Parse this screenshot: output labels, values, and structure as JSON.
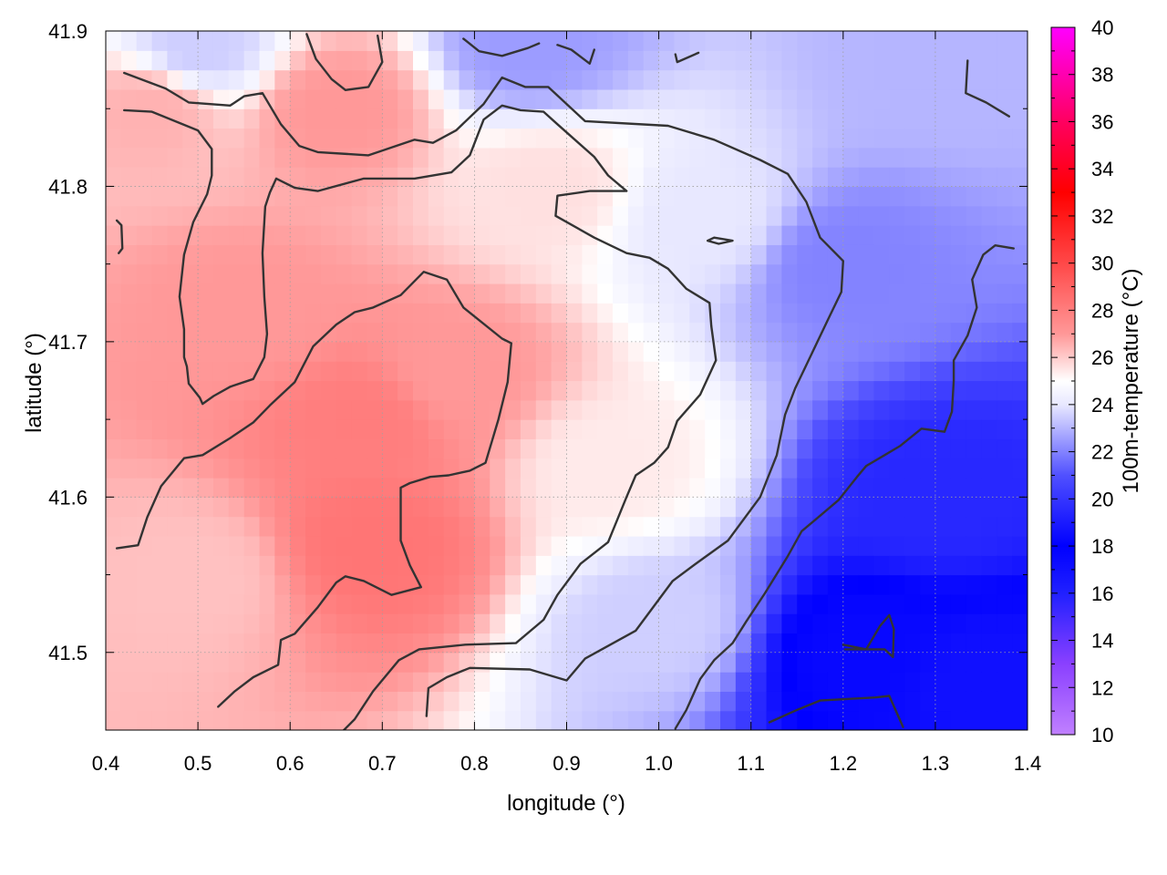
{
  "chart_data": {
    "type": "heatmap",
    "title": "",
    "xlabel": "longitude (°)",
    "ylabel": "latitude (°)",
    "colorbar_label": "100m-temperature (°C)",
    "xlim": [
      0.4,
      1.4
    ],
    "ylim": [
      41.45,
      41.9
    ],
    "x_ticks": [
      "0.4",
      "0.5",
      "0.6",
      "0.7",
      "0.8",
      "0.9",
      "1.0",
      "1.1",
      "1.2",
      "1.3",
      "1.4"
    ],
    "y_ticks": [
      "41.5",
      "41.6",
      "41.7",
      "41.8",
      "41.9"
    ],
    "colorbar_range": [
      10,
      40
    ],
    "colorbar_ticks": [
      "10",
      "12",
      "14",
      "16",
      "18",
      "20",
      "22",
      "24",
      "26",
      "28",
      "30",
      "32",
      "34",
      "36",
      "38",
      "40"
    ],
    "colormap": [
      {
        "value": 10,
        "color": "#c080ff"
      },
      {
        "value": 13,
        "color": "#8a40ff"
      },
      {
        "value": 16,
        "color": "#2020ff"
      },
      {
        "value": 18,
        "color": "#0000ff"
      },
      {
        "value": 21,
        "color": "#5050ff"
      },
      {
        "value": 24,
        "color": "#e8e8ff"
      },
      {
        "value": 25,
        "color": "#ffffff"
      },
      {
        "value": 27,
        "color": "#ff9898"
      },
      {
        "value": 30,
        "color": "#ff4848"
      },
      {
        "value": 33,
        "color": "#ff0000"
      },
      {
        "value": 36,
        "color": "#ff0060"
      },
      {
        "value": 40,
        "color": "#ff00ff"
      }
    ],
    "grid": true,
    "contour_color": "#333333",
    "temperature_field_samples": [
      {
        "lon": 0.45,
        "lat": 41.85,
        "temp": 26.5
      },
      {
        "lon": 0.55,
        "lat": 41.72,
        "temp": 27.0
      },
      {
        "lon": 0.68,
        "lat": 41.65,
        "temp": 28.0
      },
      {
        "lon": 0.69,
        "lat": 41.57,
        "temp": 28.3
      },
      {
        "lon": 0.78,
        "lat": 41.68,
        "temp": 27.0
      },
      {
        "lon": 0.65,
        "lat": 41.85,
        "temp": 27.0
      },
      {
        "lon": 0.5,
        "lat": 41.55,
        "temp": 26.2
      },
      {
        "lon": 0.88,
        "lat": 41.8,
        "temp": 25.6
      },
      {
        "lon": 0.95,
        "lat": 41.62,
        "temp": 25.4
      },
      {
        "lon": 1.05,
        "lat": 41.78,
        "temp": 24.0
      },
      {
        "lon": 1.0,
        "lat": 41.52,
        "temp": 23.5
      },
      {
        "lon": 1.2,
        "lat": 41.75,
        "temp": 22.0
      },
      {
        "lon": 1.3,
        "lat": 41.88,
        "temp": 23.0
      },
      {
        "lon": 1.3,
        "lat": 41.6,
        "temp": 19.5
      },
      {
        "lon": 1.22,
        "lat": 41.5,
        "temp": 17.5
      },
      {
        "lon": 1.35,
        "lat": 41.48,
        "temp": 17.0
      },
      {
        "lon": 0.5,
        "lat": 41.89,
        "temp": 23.5
      },
      {
        "lon": 0.86,
        "lat": 41.89,
        "temp": 22.5
      }
    ],
    "contour_lines": [
      [
        [
          0.42,
          41.873
        ],
        [
          0.465,
          41.863
        ],
        [
          0.49,
          41.854
        ],
        [
          0.535,
          41.852
        ],
        [
          0.55,
          41.858
        ],
        [
          0.57,
          41.86
        ],
        [
          0.59,
          41.84
        ],
        [
          0.61,
          41.826
        ],
        [
          0.63,
          41.822
        ],
        [
          0.685,
          41.82
        ],
        [
          0.735,
          41.83
        ],
        [
          0.755,
          41.828
        ],
        [
          0.78,
          41.836
        ],
        [
          0.81,
          41.853
        ],
        [
          0.83,
          41.87
        ],
        [
          0.855,
          41.864
        ],
        [
          0.88,
          41.864
        ],
        [
          0.92,
          41.842
        ],
        [
          1.01,
          41.839
        ],
        [
          1.06,
          41.83
        ],
        [
          1.11,
          41.817
        ],
        [
          1.14,
          41.808
        ],
        [
          1.16,
          41.79
        ],
        [
          1.175,
          41.767
        ],
        [
          1.2,
          41.752
        ],
        [
          1.198,
          41.732
        ],
        [
          1.185,
          41.716
        ],
        [
          1.16,
          41.685
        ],
        [
          1.148,
          41.67
        ],
        [
          1.137,
          41.653
        ],
        [
          1.128,
          41.627
        ],
        [
          1.11,
          41.6
        ],
        [
          1.075,
          41.572
        ],
        [
          1.04,
          41.557
        ],
        [
          1.015,
          41.546
        ],
        [
          0.975,
          41.514
        ],
        [
          0.92,
          41.496
        ],
        [
          0.9,
          41.482
        ],
        [
          0.86,
          41.489
        ],
        [
          0.795,
          41.49
        ],
        [
          0.77,
          41.484
        ],
        [
          0.75,
          41.477
        ],
        [
          0.748,
          41.459
        ]
      ],
      [
        [
          0.42,
          41.849
        ],
        [
          0.45,
          41.848
        ],
        [
          0.5,
          41.836
        ],
        [
          0.515,
          41.824
        ],
        [
          0.515,
          41.807
        ],
        [
          0.51,
          41.795
        ],
        [
          0.495,
          41.777
        ],
        [
          0.485,
          41.756
        ],
        [
          0.48,
          41.729
        ],
        [
          0.485,
          41.708
        ],
        [
          0.485,
          41.69
        ],
        [
          0.488,
          41.684
        ],
        [
          0.49,
          41.673
        ],
        [
          0.502,
          41.664
        ],
        [
          0.505,
          41.66
        ],
        [
          0.517,
          41.665
        ],
        [
          0.535,
          41.671
        ],
        [
          0.56,
          41.676
        ],
        [
          0.572,
          41.69
        ],
        [
          0.575,
          41.705
        ],
        [
          0.572,
          41.729
        ],
        [
          0.57,
          41.757
        ],
        [
          0.573,
          41.787
        ],
        [
          0.578,
          41.796
        ],
        [
          0.585,
          41.805
        ],
        [
          0.605,
          41.799
        ],
        [
          0.63,
          41.797
        ],
        [
          0.68,
          41.805
        ],
        [
          0.735,
          41.805
        ],
        [
          0.775,
          41.809
        ],
        [
          0.795,
          41.82
        ],
        [
          0.81,
          41.843
        ],
        [
          0.83,
          41.852
        ],
        [
          0.85,
          41.849
        ],
        [
          0.875,
          41.848
        ],
        [
          0.89,
          41.84
        ],
        [
          0.93,
          41.819
        ],
        [
          0.945,
          41.807
        ],
        [
          0.965,
          41.797
        ],
        [
          0.925,
          41.797
        ],
        [
          0.89,
          41.794
        ],
        [
          0.888,
          41.781
        ],
        [
          0.93,
          41.767
        ],
        [
          0.965,
          41.757
        ],
        [
          0.99,
          41.754
        ],
        [
          1.01,
          41.747
        ],
        [
          1.03,
          41.734
        ],
        [
          1.055,
          41.725
        ],
        [
          1.057,
          41.71
        ],
        [
          1.062,
          41.688
        ],
        [
          1.045,
          41.666
        ],
        [
          1.02,
          41.649
        ],
        [
          1.01,
          41.632
        ],
        [
          0.995,
          41.622
        ],
        [
          0.975,
          41.614
        ],
        [
          0.965,
          41.6
        ],
        [
          0.945,
          41.571
        ],
        [
          0.915,
          41.557
        ],
        [
          0.89,
          41.537
        ],
        [
          0.875,
          41.521
        ],
        [
          0.845,
          41.506
        ],
        [
          0.79,
          41.505
        ],
        [
          0.74,
          41.502
        ],
        [
          0.718,
          41.495
        ],
        [
          0.69,
          41.475
        ],
        [
          0.67,
          41.457
        ],
        [
          0.655,
          41.448
        ]
      ],
      [
        [
          0.412,
          41.567
        ],
        [
          0.435,
          41.569
        ],
        [
          0.445,
          41.587
        ],
        [
          0.46,
          41.607
        ],
        [
          0.485,
          41.625
        ],
        [
          0.505,
          41.627
        ],
        [
          0.535,
          41.638
        ],
        [
          0.56,
          41.648
        ],
        [
          0.578,
          41.659
        ],
        [
          0.605,
          41.674
        ],
        [
          0.625,
          41.697
        ],
        [
          0.65,
          41.711
        ],
        [
          0.67,
          41.719
        ],
        [
          0.69,
          41.722
        ],
        [
          0.72,
          41.73
        ],
        [
          0.745,
          41.745
        ],
        [
          0.77,
          41.74
        ],
        [
          0.788,
          41.722
        ],
        [
          0.83,
          41.702
        ],
        [
          0.84,
          41.699
        ],
        [
          0.836,
          41.674
        ],
        [
          0.826,
          41.65
        ],
        [
          0.812,
          41.622
        ],
        [
          0.795,
          41.617
        ],
        [
          0.772,
          41.614
        ],
        [
          0.752,
          41.613
        ],
        [
          0.73,
          41.609
        ],
        [
          0.72,
          41.606
        ],
        [
          0.72,
          41.587
        ],
        [
          0.72,
          41.572
        ],
        [
          0.73,
          41.556
        ],
        [
          0.742,
          41.542
        ],
        [
          0.71,
          41.537
        ],
        [
          0.68,
          41.546
        ],
        [
          0.66,
          41.549
        ],
        [
          0.65,
          41.545
        ],
        [
          0.63,
          41.529
        ],
        [
          0.605,
          41.512
        ],
        [
          0.59,
          41.508
        ],
        [
          0.587,
          41.492
        ],
        [
          0.56,
          41.484
        ],
        [
          0.54,
          41.475
        ],
        [
          0.522,
          41.465
        ]
      ],
      [
        [
          0.618,
          41.898
        ],
        [
          0.628,
          41.882
        ],
        [
          0.645,
          41.869
        ],
        [
          0.66,
          41.862
        ],
        [
          0.685,
          41.864
        ],
        [
          0.7,
          41.88
        ],
        [
          0.695,
          41.897
        ]
      ],
      [
        [
          0.788,
          41.895
        ],
        [
          0.805,
          41.887
        ],
        [
          0.83,
          41.884
        ],
        [
          0.858,
          41.889
        ],
        [
          0.87,
          41.892
        ]
      ],
      [
        [
          0.89,
          41.891
        ],
        [
          0.905,
          41.888
        ],
        [
          0.925,
          41.879
        ],
        [
          0.93,
          41.888
        ]
      ],
      [
        [
          1.018,
          41.885
        ],
        [
          1.02,
          41.88
        ],
        [
          1.043,
          41.886
        ]
      ],
      [
        [
          0.412,
          41.778
        ],
        [
          0.417,
          41.775
        ],
        [
          0.418,
          41.76
        ],
        [
          0.414,
          41.757
        ]
      ],
      [
        [
          1.053,
          41.765
        ],
        [
          1.06,
          41.767
        ],
        [
          1.08,
          41.765
        ],
        [
          1.065,
          41.763
        ],
        [
          1.053,
          41.765
        ]
      ],
      [
        [
          1.335,
          41.881
        ],
        [
          1.333,
          41.86
        ],
        [
          1.355,
          41.854
        ],
        [
          1.38,
          41.845
        ]
      ],
      [
        [
          1.12,
          41.455
        ],
        [
          1.15,
          41.463
        ],
        [
          1.175,
          41.469
        ],
        [
          1.235,
          41.471
        ],
        [
          1.25,
          41.472
        ],
        [
          1.265,
          41.452
        ]
      ],
      [
        [
          1.2,
          41.505
        ],
        [
          1.225,
          41.502
        ],
        [
          1.24,
          41.517
        ],
        [
          1.25,
          41.524
        ],
        [
          1.255,
          41.515
        ],
        [
          1.254,
          41.497
        ],
        [
          1.245,
          41.502
        ],
        [
          1.202,
          41.502
        ]
      ],
      [
        [
          1.018,
          41.451
        ],
        [
          1.03,
          41.463
        ],
        [
          1.045,
          41.483
        ],
        [
          1.06,
          41.495
        ],
        [
          1.08,
          41.506
        ],
        [
          1.095,
          41.52
        ],
        [
          1.115,
          41.538
        ],
        [
          1.14,
          41.562
        ],
        [
          1.155,
          41.578
        ],
        [
          1.175,
          41.588
        ],
        [
          1.195,
          41.598
        ],
        [
          1.215,
          41.613
        ],
        [
          1.225,
          41.62
        ],
        [
          1.245,
          41.627
        ],
        [
          1.262,
          41.633
        ],
        [
          1.285,
          41.644
        ],
        [
          1.31,
          41.642
        ],
        [
          1.318,
          41.655
        ],
        [
          1.32,
          41.675
        ],
        [
          1.32,
          41.688
        ],
        [
          1.335,
          41.704
        ],
        [
          1.345,
          41.722
        ],
        [
          1.34,
          41.74
        ],
        [
          1.352,
          41.756
        ],
        [
          1.365,
          41.762
        ],
        [
          1.385,
          41.76
        ]
      ]
    ]
  }
}
